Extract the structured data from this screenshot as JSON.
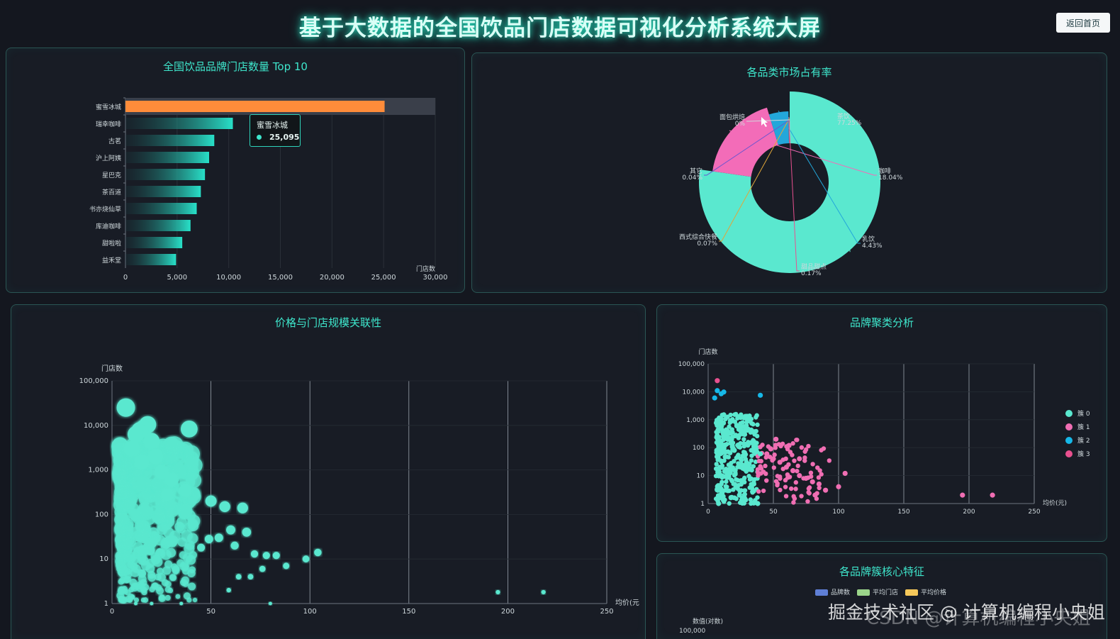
{
  "page": {
    "title": "基于大数据的全国饮品门店数据可视化分析系统大屏",
    "back_button": "返回首页"
  },
  "colors": {
    "accent": "#3ee6cc",
    "bar_top": "#ff8c3a",
    "bar": "#28e0c8",
    "cluster0": "#5ae8cf",
    "cluster1": "#f06eb3",
    "cluster2": "#16b8e8",
    "cluster3": "#e8508f"
  },
  "panels": {
    "top10_title": "全国饮品品牌门店数量 Top 10",
    "pie_title": "各品类市场占有率",
    "scatter_title": "价格与门店规模关联性",
    "cluster_title": "品牌聚类分析",
    "features_title": "各品牌簇核心特征"
  },
  "tooltip": {
    "name": "蜜雪冰城",
    "value": "25,095"
  },
  "watermark": {
    "line1": "掘金技术社区 @ 计算机编程小央姐",
    "line2": "CSDN @计算机编程小央姐"
  },
  "features_legend": [
    "品牌数",
    "平均门店",
    "平均价格"
  ],
  "features_axis": {
    "ylabel": "数值(对数)",
    "top_tick": "100,000"
  },
  "chart_data": [
    {
      "type": "bar",
      "title": "全国饮品品牌门店数量 Top 10",
      "categories": [
        "蜜雪冰城",
        "瑞幸咖啡",
        "古茗",
        "沪上阿姨",
        "星巴克",
        "茶百道",
        "书亦烧仙草",
        "库迪咖啡",
        "甜啦啦",
        "益禾堂"
      ],
      "values": [
        25095,
        10400,
        8600,
        8100,
        7700,
        7300,
        6900,
        6300,
        5500,
        4900
      ],
      "xlabel": "门店数",
      "xlim": [
        0,
        30000
      ],
      "xticks": [
        "0",
        "5,000",
        "10,000",
        "15,000",
        "20,000",
        "25,000",
        "30,000"
      ],
      "orientation": "horizontal"
    },
    {
      "type": "pie",
      "title": "各品类市场占有率",
      "slices": [
        {
          "name": "茶饮",
          "label": "77.25%",
          "value": 77.25
        },
        {
          "name": "咖啡",
          "label": "18.04%",
          "value": 18.04
        },
        {
          "name": "乳饮",
          "label": "4.43%",
          "value": 4.43
        },
        {
          "name": "甜品甜点",
          "label": "0.17%",
          "value": 0.17
        },
        {
          "name": "西式综合快餐",
          "label": "0.07%",
          "value": 0.07
        },
        {
          "name": "其它",
          "label": "0.04%",
          "value": 0.04
        },
        {
          "name": "面包烘焙",
          "label": "0%",
          "value": 0
        }
      ],
      "style": "rose"
    },
    {
      "type": "scatter",
      "title": "价格与门店规模关联性",
      "xlabel": "均价(元",
      "ylabel": "门店数",
      "xlim": [
        0,
        250
      ],
      "ylim": [
        1,
        100000
      ],
      "y_log": true,
      "xticks": [
        "0",
        "50",
        "100",
        "150",
        "200",
        "250"
      ],
      "yticks": [
        "1",
        "10",
        "100",
        "1,000",
        "10,000",
        "100,000"
      ],
      "points": [
        [
          7,
          25095
        ],
        [
          39,
          8300
        ],
        [
          18,
          10400
        ],
        [
          16,
          8600
        ],
        [
          14,
          7700
        ],
        [
          12,
          6300
        ],
        [
          20,
          4500
        ],
        [
          10,
          3000
        ],
        [
          22,
          2000
        ],
        [
          15,
          1500
        ],
        [
          25,
          900
        ],
        [
          30,
          600
        ],
        [
          37,
          350
        ],
        [
          28,
          280
        ],
        [
          50,
          200
        ],
        [
          57,
          150
        ],
        [
          66,
          140
        ],
        [
          60,
          45
        ],
        [
          68,
          40
        ],
        [
          54,
          30
        ],
        [
          49,
          28
        ],
        [
          45,
          18
        ],
        [
          62,
          20
        ],
        [
          72,
          13
        ],
        [
          78,
          12
        ],
        [
          83,
          12
        ],
        [
          98,
          10
        ],
        [
          104,
          14
        ],
        [
          88,
          7
        ],
        [
          76,
          6
        ],
        [
          70,
          4
        ],
        [
          64,
          4
        ],
        [
          59,
          2
        ],
        [
          195,
          1.8
        ],
        [
          218,
          1.8
        ],
        [
          80,
          1
        ],
        [
          35,
          1
        ],
        [
          20,
          1
        ],
        [
          12,
          1
        ]
      ]
    },
    {
      "type": "scatter",
      "title": "品牌聚类分析",
      "xlabel": "均价(元)",
      "ylabel": "门店数",
      "xlim": [
        0,
        250
      ],
      "ylim": [
        1,
        100000
      ],
      "y_log": true,
      "xticks": [
        "0",
        "50",
        "100",
        "150",
        "200",
        "250"
      ],
      "yticks": [
        "1",
        "10",
        "100",
        "1,000",
        "10,000",
        "100,000"
      ],
      "legend": [
        "簇 0",
        "簇 1",
        "簇 2",
        "簇 3"
      ],
      "legend_position": "right",
      "clusters": [
        {
          "name": "簇 0",
          "points": [
            [
              12,
              1500
            ],
            [
              18,
              900
            ],
            [
              22,
              600
            ],
            [
              28,
              300
            ],
            [
              33,
              150
            ],
            [
              15,
              200
            ],
            [
              20,
              80
            ],
            [
              25,
              40
            ],
            [
              30,
              20
            ],
            [
              10,
              10
            ],
            [
              14,
              3
            ],
            [
              24,
              2
            ],
            [
              35,
              5
            ],
            [
              38,
              1
            ],
            [
              8,
              1
            ],
            [
              40,
              60
            ],
            [
              32,
              900
            ]
          ]
        },
        {
          "name": "簇 1",
          "points": [
            [
              45,
              60
            ],
            [
              50,
              40
            ],
            [
              55,
              30
            ],
            [
              60,
              20
            ],
            [
              65,
              15
            ],
            [
              70,
              10
            ],
            [
              75,
              8
            ],
            [
              80,
              6
            ],
            [
              85,
              5
            ],
            [
              90,
              3
            ],
            [
              100,
              4
            ],
            [
              105,
              12
            ],
            [
              52,
              200
            ],
            [
              48,
              90
            ],
            [
              62,
              120
            ],
            [
              70,
              40
            ],
            [
              82,
              2
            ],
            [
              195,
              2
            ],
            [
              218,
              2
            ]
          ]
        },
        {
          "name": "簇 2",
          "points": [
            [
              7,
              11000
            ],
            [
              10,
              8500
            ],
            [
              12,
              9800
            ],
            [
              40,
              7500
            ],
            [
              5,
              6000
            ]
          ]
        },
        {
          "name": "簇 3",
          "points": [
            [
              7,
              25000
            ]
          ]
        }
      ]
    }
  ]
}
